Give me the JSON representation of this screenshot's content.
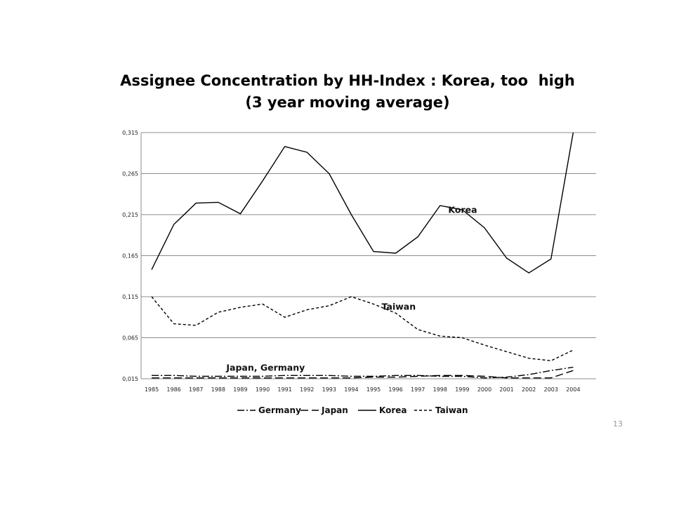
{
  "slide": {
    "page_number": "13"
  },
  "chart_data": {
    "type": "line",
    "title": "Assignee Concentration by HH-Index : Korea, too  high",
    "subtitle": "(3 year moving average)",
    "xlabel": "",
    "ylabel": "",
    "x": [
      "1985",
      "1986",
      "1987",
      "1988",
      "1989",
      "1990",
      "1991",
      "1992",
      "1993",
      "1994",
      "1995",
      "1996",
      "1997",
      "1998",
      "1999",
      "2000",
      "2001",
      "2002",
      "2003",
      "2004"
    ],
    "ylim": [
      0.015,
      0.315
    ],
    "yticks": [
      "0,015",
      "0,065",
      "0,115",
      "0,165",
      "0,215",
      "0,265",
      "0,315"
    ],
    "grid": true,
    "legend_position": "bottom",
    "series": [
      {
        "name": "Germany",
        "style": "dash-dot",
        "values": [
          0.019,
          0.019,
          0.018,
          0.018,
          0.018,
          0.018,
          0.019,
          0.019,
          0.019,
          0.018,
          0.018,
          0.019,
          0.019,
          0.018,
          0.018,
          0.016,
          0.017,
          0.02,
          0.025,
          0.029
        ]
      },
      {
        "name": "Japan",
        "style": "long-dash",
        "values": [
          0.016,
          0.016,
          0.016,
          0.016,
          0.016,
          0.016,
          0.016,
          0.016,
          0.016,
          0.016,
          0.017,
          0.017,
          0.018,
          0.019,
          0.019,
          0.018,
          0.016,
          0.016,
          0.016,
          0.025
        ]
      },
      {
        "name": "Korea",
        "style": "solid",
        "values": [
          0.148,
          0.203,
          0.229,
          0.23,
          0.216,
          0.256,
          0.298,
          0.291,
          0.265,
          0.215,
          0.17,
          0.168,
          0.188,
          0.226,
          0.221,
          0.199,
          0.162,
          0.144,
          0.161,
          0.315
        ]
      },
      {
        "name": "Taiwan",
        "style": "short-dash",
        "values": [
          0.115,
          0.082,
          0.08,
          0.096,
          0.102,
          0.106,
          0.09,
          0.099,
          0.104,
          0.115,
          0.106,
          0.095,
          0.075,
          0.067,
          0.065,
          0.056,
          0.048,
          0.04,
          0.037,
          0.05
        ]
      }
    ],
    "annotations": [
      {
        "text": "Korea",
        "x": "1999",
        "y": 0.217
      },
      {
        "text": "Taiwan",
        "x": "1996",
        "y": 0.099
      },
      {
        "text": "Japan, Germany",
        "x": "1989",
        "y": 0.025
      }
    ]
  }
}
